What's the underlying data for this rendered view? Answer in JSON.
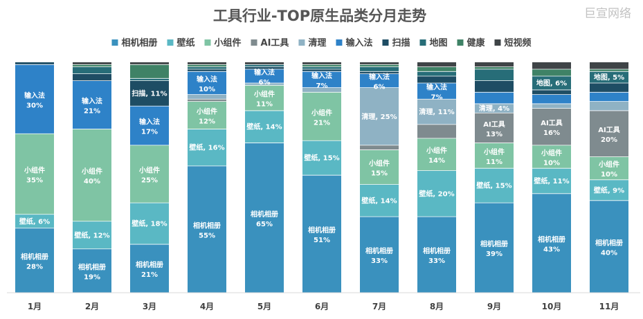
{
  "chart_data": {
    "type": "bar",
    "stacked": true,
    "normalized": true,
    "title": "工具行业-TOP原生品类分月走势",
    "watermark": "巨宣网络",
    "legend_position": "top",
    "categories": [
      "1月",
      "2月",
      "3月",
      "4月",
      "5月",
      "6月",
      "7月",
      "8月",
      "9月",
      "10月",
      "11月"
    ],
    "series": [
      {
        "name": "相机相册",
        "color": "#3a91be",
        "values": [
          28,
          19,
          21,
          55,
          65,
          51,
          33,
          33,
          39,
          43,
          40
        ]
      },
      {
        "name": "壁纸",
        "color": "#5ab8c4",
        "values": [
          6,
          12,
          18,
          16,
          14,
          15,
          14,
          20,
          15,
          11,
          9
        ]
      },
      {
        "name": "小组件",
        "color": "#7fc4a4",
        "values": [
          35,
          40,
          25,
          12,
          11,
          21,
          15,
          14,
          11,
          10,
          10
        ]
      },
      {
        "name": "AI工具",
        "color": "#7f8b8f",
        "values": [
          0,
          0,
          0,
          1,
          0,
          0,
          2,
          6,
          13,
          16,
          20
        ]
      },
      {
        "name": "清理",
        "color": "#8fb2c4",
        "values": [
          0,
          0,
          0,
          2,
          1,
          2,
          25,
          11,
          4,
          2,
          4
        ]
      },
      {
        "name": "输入法",
        "color": "#2e82c8",
        "values": [
          30,
          21,
          17,
          10,
          6,
          7,
          6,
          7,
          5,
          4,
          4
        ]
      },
      {
        "name": "扫描",
        "color": "#1e4d64",
        "values": [
          1,
          3,
          11,
          1,
          1,
          1,
          1,
          3,
          5,
          2,
          4
        ]
      },
      {
        "name": "地图",
        "color": "#276d78",
        "values": [
          0,
          3,
          1,
          1,
          1,
          1,
          2,
          2,
          5,
          6,
          5
        ]
      },
      {
        "name": "健康",
        "color": "#3f8266",
        "values": [
          0,
          1,
          6,
          1,
          0,
          1,
          1,
          2,
          1,
          3,
          1
        ]
      },
      {
        "name": "短视频",
        "color": "#3f4447",
        "values": [
          0,
          1,
          1,
          1,
          1,
          1,
          1,
          2,
          2,
          3,
          3
        ]
      }
    ],
    "data_labels": [
      [
        {
          "series": "相机相册",
          "text": "相机相册 28%"
        },
        {
          "series": "壁纸",
          "text": "壁纸, 6%"
        },
        {
          "series": "小组件",
          "text": "小组件 35%"
        },
        {
          "series": "输入法",
          "text": "输入法 30%"
        }
      ],
      [
        {
          "series": "相机相册",
          "text": "相机相册 19%"
        },
        {
          "series": "壁纸",
          "text": "壁纸, 12%"
        },
        {
          "series": "小组件",
          "text": "小组件 40%"
        },
        {
          "series": "输入法",
          "text": "输入法 21%"
        }
      ],
      [
        {
          "series": "相机相册",
          "text": "相机相册 21%"
        },
        {
          "series": "壁纸",
          "text": "壁纸, 18%"
        },
        {
          "series": "小组件",
          "text": "小组件 25%"
        },
        {
          "series": "输入法",
          "text": "输入法 17%"
        },
        {
          "series": "扫描",
          "text": "扫描, 11%"
        }
      ],
      [
        {
          "series": "相机相册",
          "text": "相机相册 55%"
        },
        {
          "series": "壁纸",
          "text": "壁纸, 16%"
        },
        {
          "series": "小组件",
          "text": "小组件 12%"
        },
        {
          "series": "输入法",
          "text": "输入法 10%"
        }
      ],
      [
        {
          "series": "相机相册",
          "text": "相机相册 65%"
        },
        {
          "series": "壁纸",
          "text": "壁纸, 14%"
        },
        {
          "series": "小组件",
          "text": "小组件 11%"
        },
        {
          "series": "输入法",
          "text": "输入法 6%"
        }
      ],
      [
        {
          "series": "相机相册",
          "text": "相机相册 51%"
        },
        {
          "series": "壁纸",
          "text": "壁纸, 15%"
        },
        {
          "series": "小组件",
          "text": "小组件 21%"
        },
        {
          "series": "输入法",
          "text": "输入法 7%"
        }
      ],
      [
        {
          "series": "相机相册",
          "text": "相机相册 33%"
        },
        {
          "series": "壁纸",
          "text": "壁纸, 14%"
        },
        {
          "series": "小组件",
          "text": "小组件 15%"
        },
        {
          "series": "清理",
          "text": "清理, 25%"
        },
        {
          "series": "输入法",
          "text": "输入法 6%"
        }
      ],
      [
        {
          "series": "相机相册",
          "text": "相机相册 33%"
        },
        {
          "series": "壁纸",
          "text": "壁纸, 20%"
        },
        {
          "series": "小组件",
          "text": "小组件 14%"
        },
        {
          "series": "清理",
          "text": "清理, 11%"
        },
        {
          "series": "输入法",
          "text": "输入法 7%"
        }
      ],
      [
        {
          "series": "相机相册",
          "text": "相机相册 39%"
        },
        {
          "series": "壁纸",
          "text": "壁纸, 15%"
        },
        {
          "series": "小组件",
          "text": "小组件 11%"
        },
        {
          "series": "AI工具",
          "text": "AI工具 13%"
        },
        {
          "series": "清理",
          "text": "清理, 4%"
        }
      ],
      [
        {
          "series": "相机相册",
          "text": "相机相册 43%"
        },
        {
          "series": "壁纸",
          "text": "壁纸, 11%"
        },
        {
          "series": "小组件",
          "text": "小组件 10%"
        },
        {
          "series": "AI工具",
          "text": "AI工具 16%"
        },
        {
          "series": "地图",
          "text": "地图, 6%"
        }
      ],
      [
        {
          "series": "相机相册",
          "text": "相机相册 40%"
        },
        {
          "series": "壁纸",
          "text": "壁纸, 9%"
        },
        {
          "series": "小组件",
          "text": "小组件 10%"
        },
        {
          "series": "AI工具",
          "text": "AI工具 20%"
        },
        {
          "series": "地图",
          "text": "地图, 5%"
        }
      ]
    ]
  }
}
